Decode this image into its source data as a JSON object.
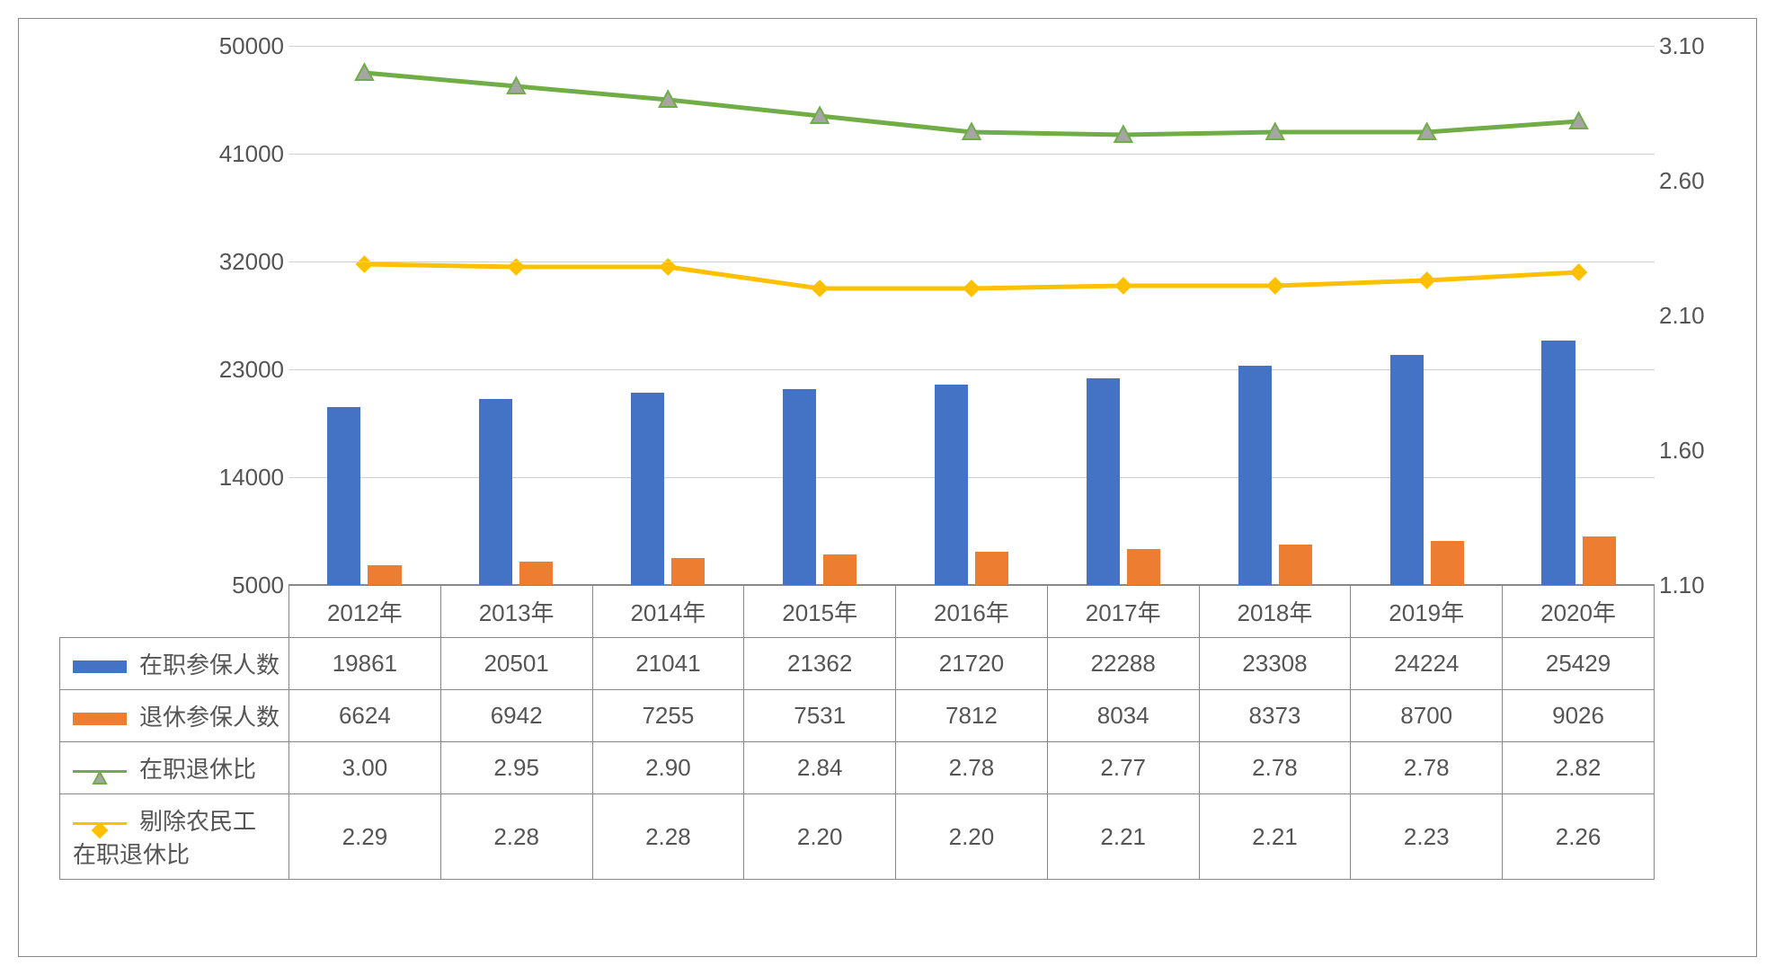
{
  "chart": {
    "type": "combo-bar-line",
    "background_color": "#ffffff",
    "border_color": "#888888",
    "grid_color": "#d0d0d0",
    "text_color": "#555555",
    "label_fontsize": 26,
    "categories": [
      "2012年",
      "2013年",
      "2014年",
      "2015年",
      "2016年",
      "2017年",
      "2018年",
      "2019年",
      "2020年"
    ],
    "y_left": {
      "min": 5000,
      "max": 50000,
      "ticks": [
        5000,
        14000,
        23000,
        32000,
        41000,
        50000
      ]
    },
    "y_right": {
      "min": 1.1,
      "max": 3.1,
      "ticks": [
        "1.10",
        "1.60",
        "2.10",
        "2.60",
        "3.10"
      ]
    },
    "series": {
      "bar1": {
        "label": "在职参保人数",
        "color": "#4472c4",
        "axis": "left",
        "bar_width": 0.22,
        "values": [
          19861,
          20501,
          21041,
          21362,
          21720,
          22288,
          23308,
          24224,
          25429
        ]
      },
      "bar2": {
        "label": "退休参保人数",
        "color": "#ed7d31",
        "axis": "left",
        "bar_width": 0.22,
        "values": [
          6624,
          6942,
          7255,
          7531,
          7812,
          8034,
          8373,
          8700,
          9026
        ]
      },
      "line1": {
        "label": "在职退休比",
        "color": "#70ad47",
        "marker_fill": "#a5a5a5",
        "marker": "triangle",
        "marker_size": 16,
        "line_width": 5,
        "axis": "right",
        "values": [
          3.0,
          2.95,
          2.9,
          2.84,
          2.78,
          2.77,
          2.78,
          2.78,
          2.82
        ],
        "display": [
          "3.00",
          "2.95",
          "2.90",
          "2.84",
          "2.78",
          "2.77",
          "2.78",
          "2.78",
          "2.82"
        ]
      },
      "line2": {
        "label": "剔除农民工在职退休比",
        "label_line1": "剔除农民工",
        "label_line2": "在职退休比",
        "color": "#ffc000",
        "marker_fill": "#ffc000",
        "marker": "diamond",
        "marker_size": 14,
        "line_width": 5,
        "axis": "right",
        "values": [
          2.29,
          2.28,
          2.28,
          2.2,
          2.2,
          2.21,
          2.21,
          2.23,
          2.26
        ],
        "display": [
          "2.29",
          "2.28",
          "2.28",
          "2.20",
          "2.20",
          "2.21",
          "2.21",
          "2.23",
          "2.26"
        ]
      }
    }
  }
}
